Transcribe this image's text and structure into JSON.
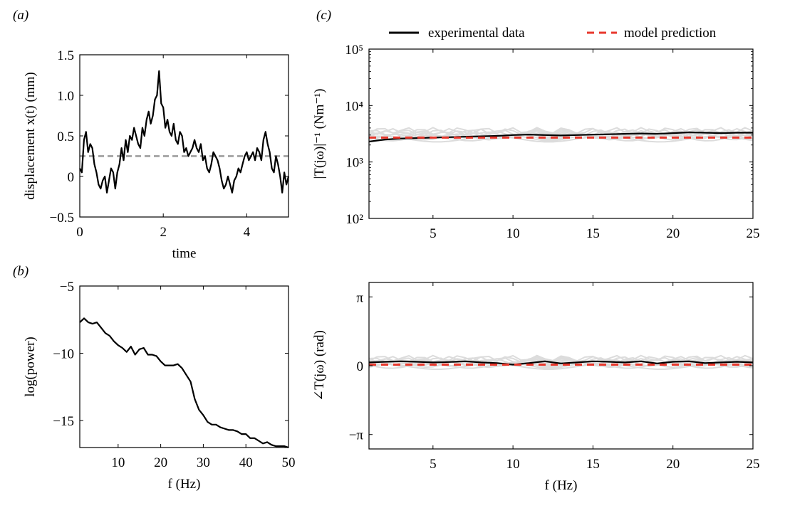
{
  "panel_labels": {
    "a": "(a)",
    "b": "(b)",
    "c": "(c)"
  },
  "legend": {
    "experimental": "experimental data",
    "model": "model prediction"
  },
  "colors": {
    "experimental": "#000000",
    "model": "#e8372c",
    "trials": "#dcdcdc",
    "mean_level": "#a9a9a9"
  },
  "chart_data": [
    {
      "id": "displacement",
      "type": "line",
      "xlabel": "time",
      "ylabel": "displacement x(t) (mm)",
      "xlim": [
        0,
        5
      ],
      "ylim": [
        -0.5,
        1.5
      ],
      "xticks": [
        0,
        2,
        4
      ],
      "yticks": [
        -0.5,
        0,
        0.5,
        1.0,
        1.5
      ],
      "ytick_labels": [
        "−0.5",
        "0",
        "0.5",
        "1.0",
        "1.5"
      ],
      "series": [
        {
          "x": [
            0,
            0.05,
            0.1,
            0.15,
            0.2,
            0.25,
            0.3,
            0.35,
            0.4,
            0.45,
            0.5,
            0.55,
            0.6,
            0.65,
            0.7,
            0.75,
            0.8,
            0.85,
            0.9,
            0.95,
            1.0,
            1.05,
            1.1,
            1.15,
            1.2,
            1.25,
            1.3,
            1.35,
            1.4,
            1.45,
            1.5,
            1.55,
            1.6,
            1.65,
            1.7,
            1.75,
            1.8,
            1.85,
            1.9,
            1.95,
            2.0,
            2.05,
            2.1,
            2.15,
            2.2,
            2.25,
            2.3,
            2.35,
            2.4,
            2.45,
            2.5,
            2.55,
            2.6,
            2.65,
            2.7,
            2.75,
            2.8,
            2.85,
            2.9,
            2.95,
            3.0,
            3.05,
            3.1,
            3.15,
            3.2,
            3.25,
            3.3,
            3.35,
            3.4,
            3.45,
            3.5,
            3.55,
            3.6,
            3.65,
            3.7,
            3.75,
            3.8,
            3.85,
            3.9,
            3.95,
            4.0,
            4.05,
            4.1,
            4.15,
            4.2,
            4.25,
            4.3,
            4.35,
            4.4,
            4.45,
            4.5,
            4.55,
            4.6,
            4.65,
            4.7,
            4.75,
            4.8,
            4.85,
            4.9,
            4.95,
            5.0
          ],
          "values": [
            0.1,
            0.05,
            0.45,
            0.55,
            0.3,
            0.4,
            0.35,
            0.15,
            0.05,
            -0.1,
            -0.15,
            -0.05,
            0.0,
            -0.2,
            -0.05,
            0.1,
            0.05,
            -0.15,
            0.05,
            0.15,
            0.35,
            0.2,
            0.45,
            0.3,
            0.5,
            0.45,
            0.6,
            0.5,
            0.4,
            0.35,
            0.6,
            0.5,
            0.7,
            0.8,
            0.65,
            0.75,
            0.95,
            1.0,
            1.3,
            0.9,
            0.85,
            0.6,
            0.7,
            0.55,
            0.5,
            0.65,
            0.45,
            0.4,
            0.55,
            0.5,
            0.3,
            0.35,
            0.25,
            0.3,
            0.35,
            0.45,
            0.35,
            0.3,
            0.4,
            0.2,
            0.25,
            0.1,
            0.05,
            0.15,
            0.3,
            0.25,
            0.2,
            0.1,
            -0.05,
            -0.15,
            -0.1,
            0.0,
            -0.1,
            -0.2,
            -0.05,
            0.0,
            0.1,
            0.05,
            0.15,
            0.25,
            0.3,
            0.2,
            0.25,
            0.3,
            0.2,
            0.35,
            0.3,
            0.2,
            0.45,
            0.55,
            0.4,
            0.3,
            0.1,
            0.05,
            0.25,
            0.15,
            0.0,
            -0.2,
            0.05,
            -0.1,
            0.0
          ]
        }
      ],
      "mean_line": 0.25
    },
    {
      "id": "power",
      "type": "line",
      "xlabel": "f (Hz)",
      "ylabel": "log(power)",
      "xlim": [
        1,
        50
      ],
      "ylim": [
        -17,
        -5
      ],
      "xticks": [
        10,
        20,
        30,
        40,
        50
      ],
      "yticks": [
        -5,
        -10,
        -15
      ],
      "ytick_labels": [
        "−5",
        "−10",
        "−15"
      ],
      "series": [
        {
          "x": [
            1,
            2,
            3,
            4,
            5,
            6,
            7,
            8,
            9,
            10,
            11,
            12,
            13,
            14,
            15,
            16,
            17,
            18,
            19,
            20,
            21,
            22,
            23,
            24,
            25,
            26,
            27,
            28,
            29,
            30,
            31,
            32,
            33,
            34,
            35,
            36,
            37,
            38,
            39,
            40,
            41,
            42,
            43,
            44,
            45,
            46,
            47,
            48,
            49,
            50
          ],
          "values": [
            -7.7,
            -7.4,
            -7.7,
            -7.8,
            -7.7,
            -8.1,
            -8.5,
            -8.7,
            -9.1,
            -9.4,
            -9.6,
            -9.9,
            -9.5,
            -10.1,
            -9.7,
            -9.6,
            -10.1,
            -10.1,
            -10.2,
            -10.6,
            -10.9,
            -10.9,
            -10.9,
            -10.8,
            -11.1,
            -11.6,
            -12.1,
            -13.4,
            -14.2,
            -14.6,
            -15.1,
            -15.3,
            -15.3,
            -15.5,
            -15.6,
            -15.7,
            -15.7,
            -15.8,
            -16.0,
            -16.0,
            -16.3,
            -16.3,
            -16.5,
            -16.7,
            -16.6,
            -16.8,
            -16.9,
            -16.9,
            -16.9,
            -17.0
          ]
        }
      ]
    },
    {
      "id": "magnitude",
      "type": "line",
      "xlabel": "",
      "ylabel": "|T(jω)|⁻¹ (Nm⁻¹)",
      "log_scale_y": true,
      "xlim": [
        1,
        25
      ],
      "ylim": [
        100,
        100000
      ],
      "xticks": [
        5,
        10,
        15,
        20,
        25
      ],
      "yticks": [
        100,
        1000,
        10000,
        100000
      ],
      "ytick_labels": [
        "10²",
        "10³",
        "10⁴",
        "10⁵"
      ],
      "series": [
        {
          "name": "experimental data",
          "x": [
            1,
            2,
            3,
            4,
            5,
            6,
            7,
            8,
            9,
            10,
            11,
            12,
            13,
            14,
            15,
            16,
            17,
            18,
            19,
            20,
            21,
            22,
            23,
            24,
            25
          ],
          "values": [
            2300,
            2500,
            2600,
            2650,
            2700,
            2750,
            2800,
            2850,
            2900,
            3000,
            3050,
            3000,
            2950,
            3000,
            3050,
            3100,
            3150,
            3200,
            3150,
            3250,
            3350,
            3300,
            3250,
            3300,
            3300
          ]
        },
        {
          "name": "model prediction",
          "x": [
            1,
            25
          ],
          "values": [
            2700,
            2700
          ]
        }
      ],
      "trials_band": [
        2000,
        4600
      ]
    },
    {
      "id": "phase",
      "type": "line",
      "xlabel": "f (Hz)",
      "ylabel": "∠T(jω) (rad)",
      "xlim": [
        1,
        25
      ],
      "ylim": [
        -3.8,
        3.8
      ],
      "xticks": [
        5,
        10,
        15,
        20,
        25
      ],
      "yticks": [
        3.1416,
        0,
        -3.1416
      ],
      "ytick_labels": [
        "π",
        "0",
        "−π"
      ],
      "series": [
        {
          "name": "experimental data",
          "x": [
            1,
            2,
            3,
            4,
            5,
            6,
            7,
            8,
            9,
            10,
            11,
            12,
            13,
            14,
            15,
            16,
            17,
            18,
            19,
            20,
            21,
            22,
            23,
            24,
            25
          ],
          "values": [
            0.15,
            0.18,
            0.2,
            0.18,
            0.15,
            0.17,
            0.2,
            0.15,
            0.12,
            0.05,
            0.12,
            0.2,
            0.1,
            0.15,
            0.2,
            0.18,
            0.15,
            0.2,
            0.1,
            0.18,
            0.2,
            0.12,
            0.15,
            0.18,
            0.15
          ],
          "values_note": ""
        },
        {
          "name": "model prediction",
          "x": [
            1,
            25
          ],
          "values": [
            0.05,
            0.05
          ]
        }
      ],
      "trials_band": [
        -0.3,
        0.6
      ]
    }
  ]
}
